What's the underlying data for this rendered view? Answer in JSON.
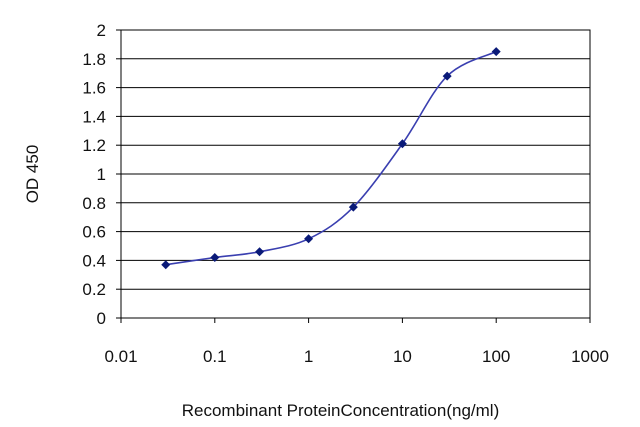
{
  "chart_data": {
    "type": "line",
    "xlabel": "Recombinant ProteinConcentration(ng/ml)",
    "ylabel": "OD 450",
    "x_scale": "log",
    "xlim": [
      0.01,
      1000
    ],
    "ylim": [
      0,
      2
    ],
    "x_ticks": [
      "0.01",
      "0.1",
      "1",
      "10",
      "100",
      "1000"
    ],
    "y_ticks": [
      "0",
      "0.2",
      "0.4",
      "0.6",
      "0.8",
      "1",
      "1.2",
      "1.4",
      "1.6",
      "1.8",
      "2"
    ],
    "grid": "horizontal",
    "series": [
      {
        "x": [
          0.03,
          0.1,
          0.3,
          1,
          3,
          10,
          30,
          100
        ],
        "y": [
          0.37,
          0.42,
          0.46,
          0.55,
          0.77,
          1.21,
          1.68,
          1.85
        ]
      }
    ],
    "colors": {
      "line": "#3a3fb0",
      "marker": "#0a1a78",
      "grid": "#000000"
    }
  }
}
